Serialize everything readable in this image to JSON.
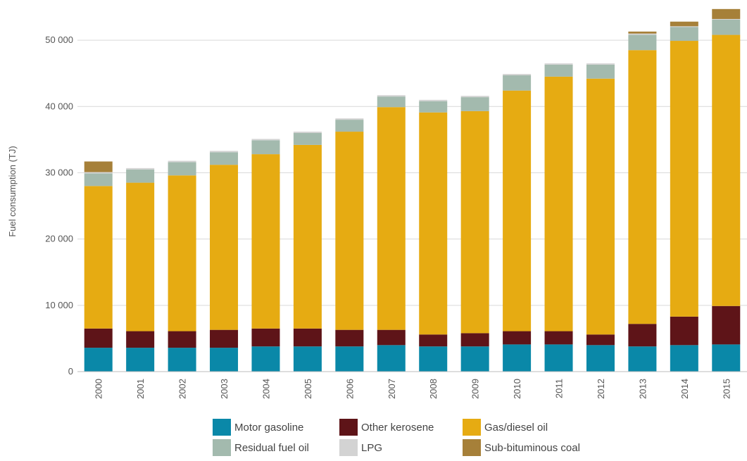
{
  "chart_data": {
    "type": "bar",
    "stacked": true,
    "title": "",
    "xlabel": "",
    "ylabel": "Fuel consumption (TJ)",
    "ylim": [
      0,
      55000
    ],
    "yticks": [
      0,
      10000,
      20000,
      30000,
      40000,
      50000
    ],
    "ytick_labels": [
      "0",
      "10 000",
      "20 000",
      "30 000",
      "40 000",
      "50 000"
    ],
    "grid": "horizontal",
    "legend_position": "bottom",
    "categories": [
      "2000",
      "2001",
      "2002",
      "2003",
      "2004",
      "2005",
      "2006",
      "2007",
      "2008",
      "2009",
      "2010",
      "2011",
      "2012",
      "2013",
      "2014",
      "2015"
    ],
    "series": [
      {
        "name": "Motor gasoline",
        "color": "#0a88a8",
        "values": [
          3600,
          3600,
          3600,
          3600,
          3800,
          3800,
          3800,
          4000,
          3800,
          3800,
          4100,
          4100,
          4000,
          3800,
          4000,
          4100
        ]
      },
      {
        "name": "Other kerosene",
        "color": "#5e1418",
        "values": [
          2900,
          2500,
          2500,
          2700,
          2700,
          2700,
          2500,
          2300,
          1800,
          2000,
          2000,
          2000,
          1600,
          3400,
          4300,
          5800
        ]
      },
      {
        "name": "Gas/diesel oil",
        "color": "#e6ab12",
        "values": [
          21500,
          22400,
          23500,
          24900,
          26300,
          27700,
          29900,
          33600,
          33500,
          33500,
          36300,
          38400,
          38600,
          41300,
          41600,
          40900
        ]
      },
      {
        "name": "Residual fuel oil",
        "color": "#a3baae",
        "values": [
          1900,
          2000,
          2000,
          1900,
          2100,
          1800,
          1800,
          1600,
          1700,
          2100,
          2300,
          1800,
          2100,
          2300,
          2100,
          2300
        ]
      },
      {
        "name": "LPG",
        "color": "#d3d3d3",
        "values": [
          200,
          200,
          200,
          200,
          200,
          200,
          200,
          200,
          200,
          200,
          200,
          200,
          200,
          200,
          100,
          100
        ]
      },
      {
        "name": "Sub-bituminous coal",
        "color": "#a68039",
        "values": [
          1600,
          0,
          0,
          0,
          0,
          0,
          0,
          0,
          0,
          0,
          0,
          0,
          0,
          300,
          700,
          1500
        ]
      }
    ]
  }
}
